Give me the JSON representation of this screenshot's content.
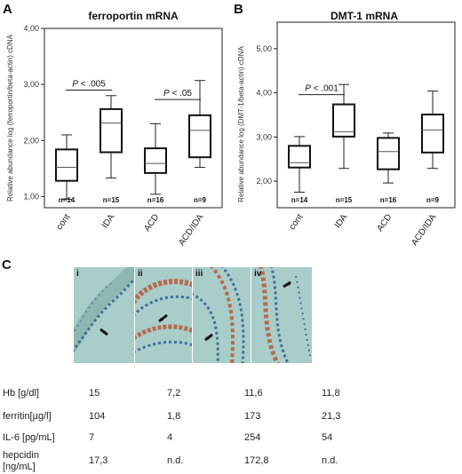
{
  "panels": {
    "A": {
      "letter": "A",
      "chart_data": {
        "type": "boxplot",
        "title": "ferroportin mRNA",
        "ylabel": "Relative abundance log (ferroportin/beta-actin) cDNA",
        "ylim": [
          0.8,
          4.0
        ],
        "yticks": [
          "1,00",
          "2,00",
          "3,00",
          "4,00"
        ],
        "ytick_values": [
          1,
          2,
          3,
          4
        ],
        "categories": [
          "cont",
          "IDA",
          "ACD",
          "ACD/IDA"
        ],
        "n_labels": [
          "n=14",
          "n=15",
          "n=16",
          "n=9"
        ],
        "boxes": [
          {
            "min": 0.95,
            "q1": 1.28,
            "median": 1.52,
            "q3": 1.84,
            "max": 2.1
          },
          {
            "min": 1.33,
            "q1": 1.79,
            "median": 2.31,
            "q3": 2.56,
            "max": 2.8
          },
          {
            "min": 1.04,
            "q1": 1.42,
            "median": 1.59,
            "q3": 1.86,
            "max": 2.3
          },
          {
            "min": 1.52,
            "q1": 1.7,
            "median": 2.18,
            "q3": 2.45,
            "max": 3.07
          }
        ],
        "annotations": [
          {
            "text": "P < .005",
            "from": 0,
            "to": 1,
            "y": 2.9
          },
          {
            "text": "P < .05",
            "from": 2,
            "to": 3,
            "y": 2.73
          }
        ]
      }
    },
    "B": {
      "letter": "B",
      "chart_data": {
        "type": "boxplot",
        "title": "DMT-1 mRNA",
        "ylabel": "Relative abundance log (DMT-1/beta-actin) cDNA",
        "ylim": [
          1.4,
          5.6
        ],
        "yticks": [
          "2,00",
          "3,00",
          "4,00",
          "5,00"
        ],
        "ytick_values": [
          2,
          3,
          4,
          5
        ],
        "categories": [
          "cont",
          "IDA",
          "ACD",
          "ACD/IDA"
        ],
        "n_labels": [
          "n=14",
          "n=15",
          "n=16",
          "n=9"
        ],
        "boxes": [
          {
            "min": 1.75,
            "q1": 2.31,
            "median": 2.42,
            "q3": 2.8,
            "max": 3.01
          },
          {
            "min": 2.29,
            "q1": 3.01,
            "median": 3.12,
            "q3": 3.74,
            "max": 4.19
          },
          {
            "min": 1.96,
            "q1": 2.27,
            "median": 2.67,
            "q3": 2.98,
            "max": 3.09
          },
          {
            "min": 2.29,
            "q1": 2.65,
            "median": 3.16,
            "q3": 3.51,
            "max": 4.04
          }
        ],
        "annotations": [
          {
            "text": "P < .001",
            "from": 0,
            "to": 1,
            "y": 3.96
          }
        ]
      }
    },
    "C": {
      "letter": "C",
      "images": [
        {
          "label": "i"
        },
        {
          "label": "ii"
        },
        {
          "label": "iii"
        },
        {
          "label": "iv"
        }
      ],
      "table": {
        "rows": [
          {
            "label": "Hb [g/dl]",
            "values": [
              "15",
              "7,2",
              "11,6",
              "11,8"
            ]
          },
          {
            "label": "ferritin[µg/l]",
            "values": [
              "104",
              "1,8",
              "173",
              "21,3"
            ]
          },
          {
            "label": "IL-6 [pg/mL]",
            "values": [
              "7",
              "4",
              "254",
              "54"
            ]
          },
          {
            "label": "hepcidin\n[ng/mL]",
            "values": [
              "17,3",
              "n.d.",
              "172,8",
              "n.d."
            ]
          }
        ]
      }
    }
  },
  "colors": {
    "micro_bg": "#a9cdc9",
    "cell_nucleus": "#3f6f9e",
    "epithelium_stain": "#b86a4c",
    "arrow": "#111111"
  }
}
